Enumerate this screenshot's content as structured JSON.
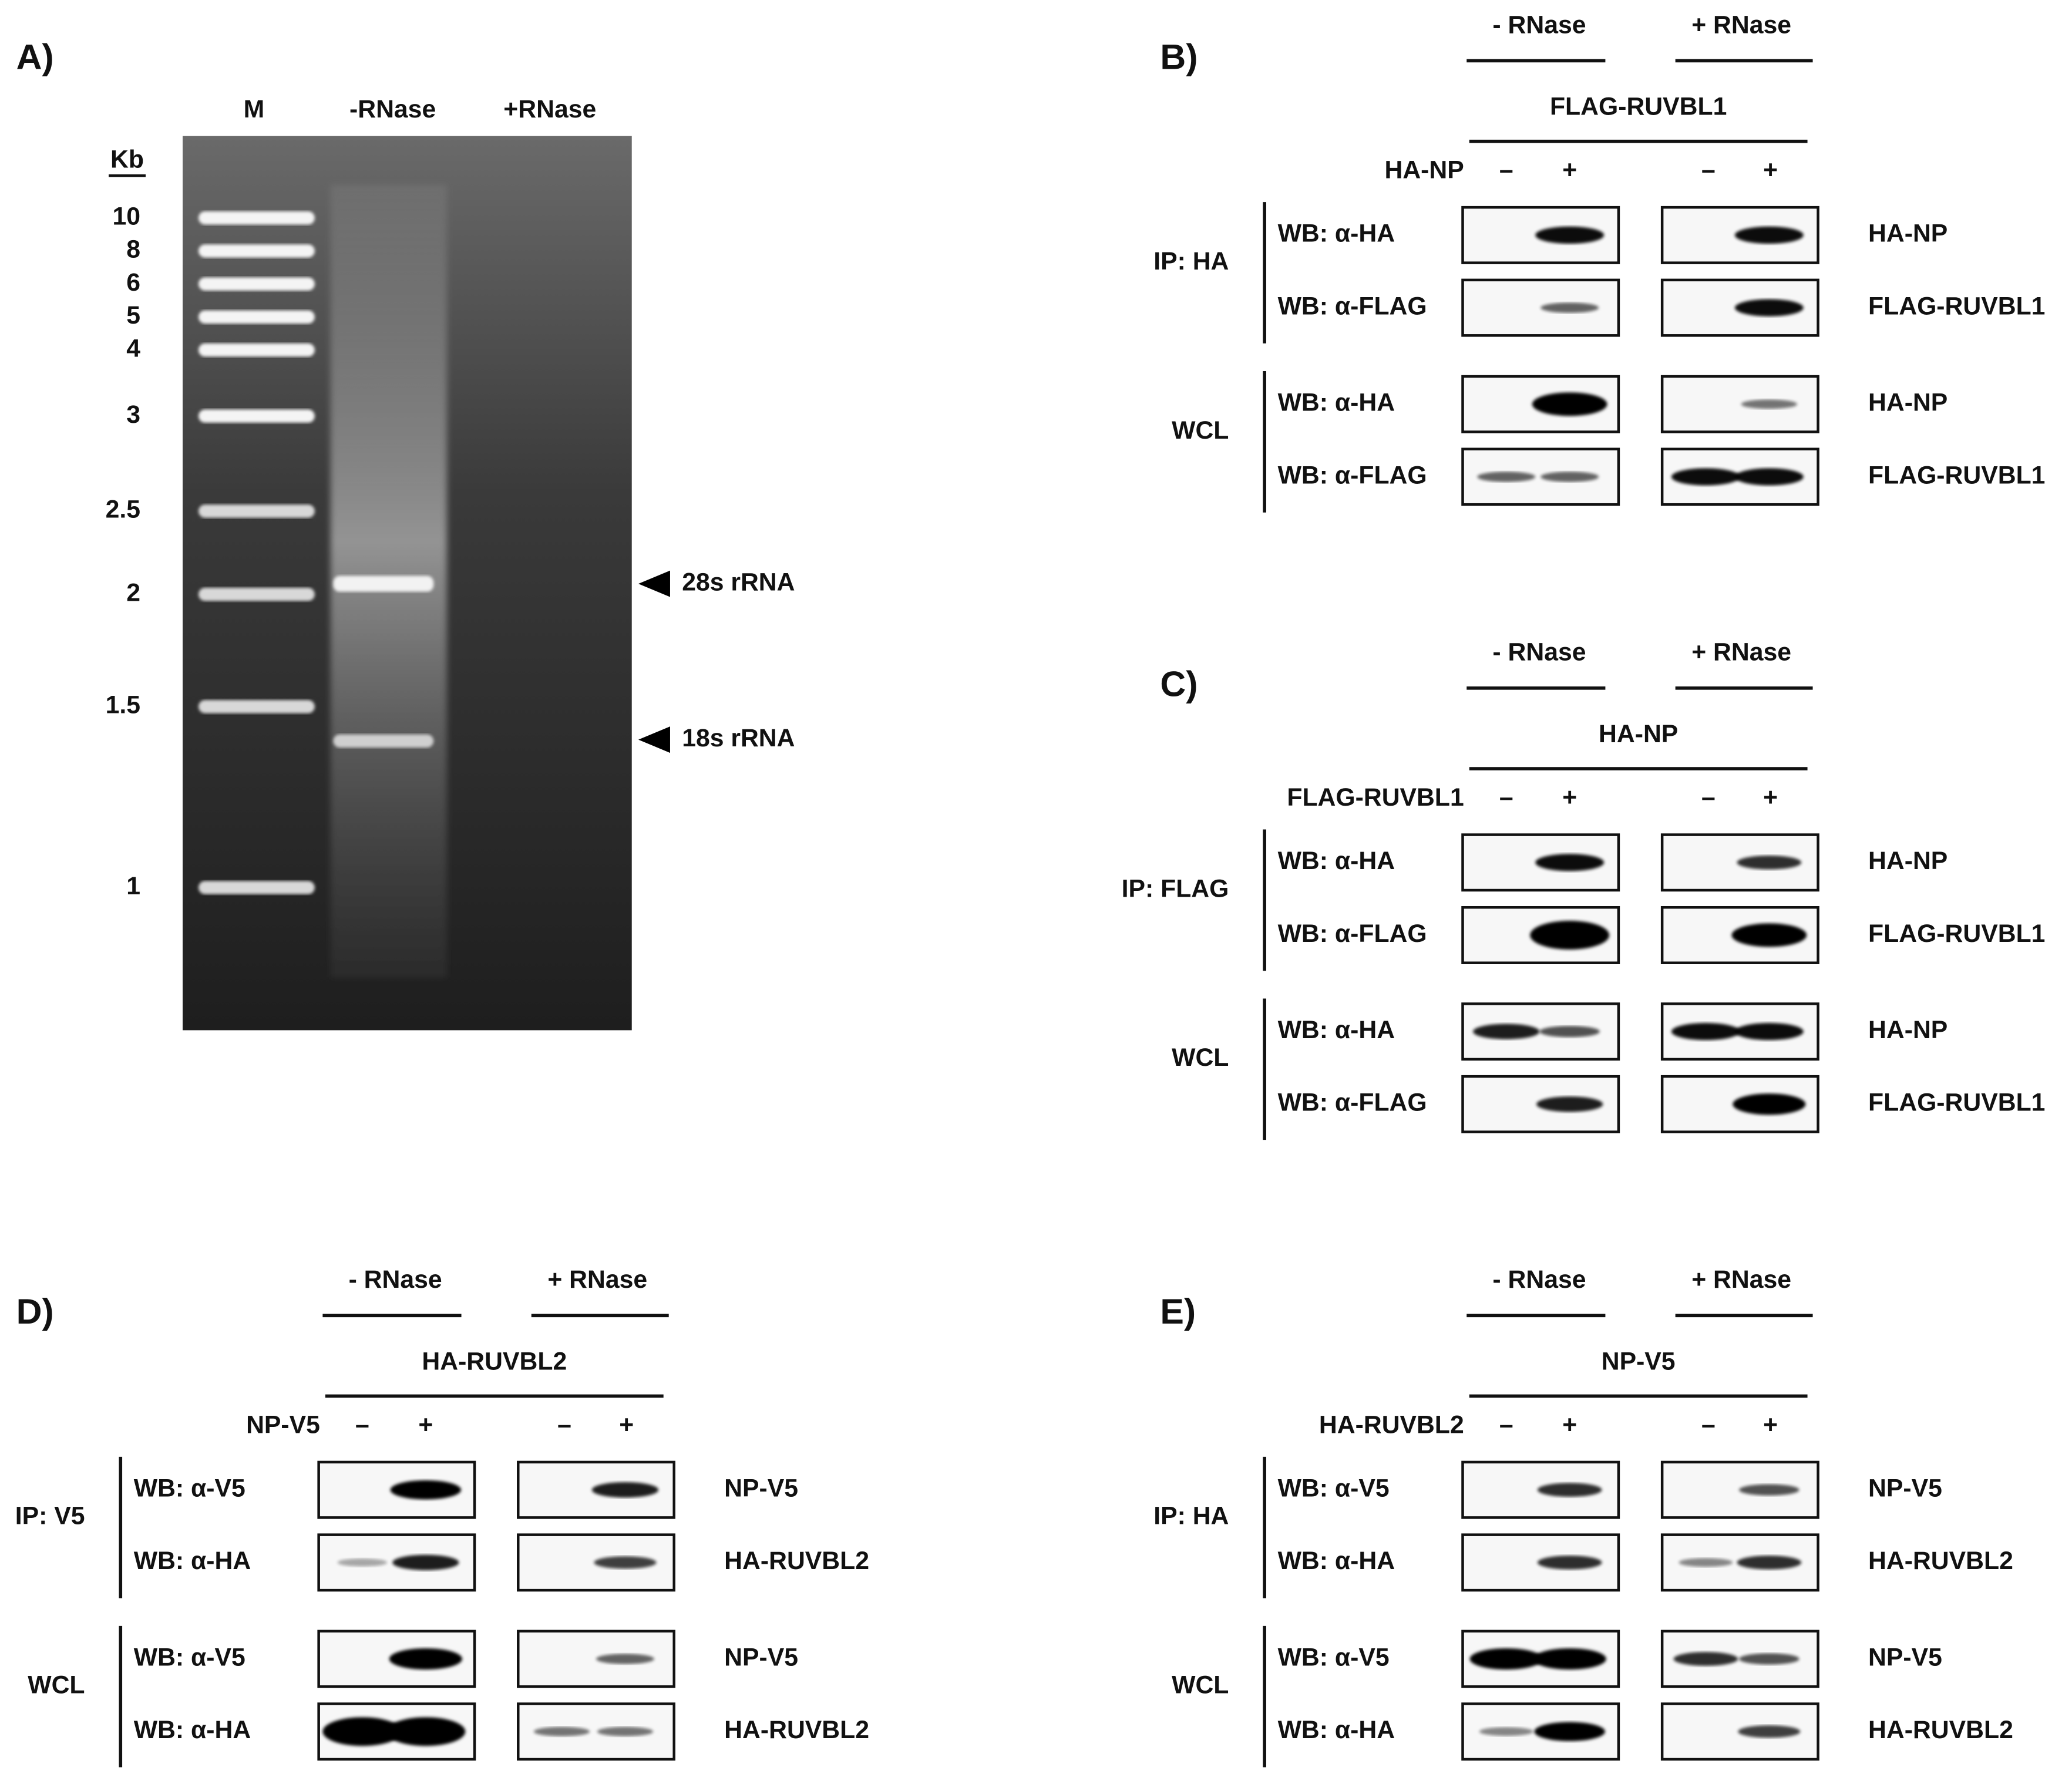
{
  "panels": [
    {
      "label": "A)",
      "lanes": [
        "M",
        "-RNase",
        "+RNase"
      ],
      "unit": "Kb",
      "ladder": [
        "10",
        "8",
        "6",
        "5",
        "4",
        "3",
        "2.5",
        "2",
        "1.5",
        "1"
      ],
      "annotations": [
        "28s rRNA",
        "18s rRNA"
      ]
    },
    {
      "label": "B)",
      "conditions": [
        "- RNase",
        "+ RNase"
      ],
      "construct": "FLAG-RUVBL1",
      "variable": "HA-NP",
      "signs": [
        "–",
        "+",
        "–",
        "+"
      ],
      "groups": [
        {
          "name": "IP: HA",
          "rows": [
            {
              "antibody": "WB: α-HA",
              "protein": "HA-NP"
            },
            {
              "antibody": "WB: α-FLAG",
              "protein": "FLAG-RUVBL1"
            }
          ]
        },
        {
          "name": "WCL",
          "rows": [
            {
              "antibody": "WB: α-HA",
              "protein": "HA-NP"
            },
            {
              "antibody": "WB: α-FLAG",
              "protein": "FLAG-RUVBL1"
            }
          ]
        }
      ]
    },
    {
      "label": "C)",
      "conditions": [
        "- RNase",
        "+ RNase"
      ],
      "construct": "HA-NP",
      "variable": "FLAG-RUVBL1",
      "signs": [
        "–",
        "+",
        "–",
        "+"
      ],
      "groups": [
        {
          "name": "IP: FLAG",
          "rows": [
            {
              "antibody": "WB: α-HA",
              "protein": "HA-NP"
            },
            {
              "antibody": "WB: α-FLAG",
              "protein": "FLAG-RUVBL1"
            }
          ]
        },
        {
          "name": "WCL",
          "rows": [
            {
              "antibody": "WB: α-HA",
              "protein": "HA-NP"
            },
            {
              "antibody": "WB: α-FLAG",
              "protein": "FLAG-RUVBL1"
            }
          ]
        }
      ]
    },
    {
      "label": "D)",
      "conditions": [
        "- RNase",
        "+ RNase"
      ],
      "construct": "HA-RUVBL2",
      "variable": "NP-V5",
      "signs": [
        "–",
        "+",
        "–",
        "+"
      ],
      "groups": [
        {
          "name": "IP: V5",
          "rows": [
            {
              "antibody": "WB: α-V5",
              "protein": "NP-V5"
            },
            {
              "antibody": "WB: α-HA",
              "protein": "HA-RUVBL2"
            }
          ]
        },
        {
          "name": "WCL",
          "rows": [
            {
              "antibody": "WB: α-V5",
              "protein": "NP-V5"
            },
            {
              "antibody": "WB: α-HA",
              "protein": "HA-RUVBL2"
            }
          ]
        }
      ]
    },
    {
      "label": "E)",
      "conditions": [
        "- RNase",
        "+ RNase"
      ],
      "construct": "NP-V5",
      "variable": "HA-RUVBL2",
      "signs": [
        "–",
        "+",
        "–",
        "+"
      ],
      "groups": [
        {
          "name": "IP: HA",
          "rows": [
            {
              "antibody": "WB: α-V5",
              "protein": "NP-V5"
            },
            {
              "antibody": "WB: α-HA",
              "protein": "HA-RUVBL2"
            }
          ]
        },
        {
          "name": "WCL",
          "rows": [
            {
              "antibody": "WB: α-V5",
              "protein": "NP-V5"
            },
            {
              "antibody": "WB: α-HA",
              "protein": "HA-RUVBL2"
            }
          ]
        }
      ]
    }
  ]
}
